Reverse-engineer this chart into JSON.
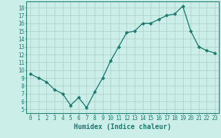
{
  "x": [
    0,
    1,
    2,
    3,
    4,
    5,
    6,
    7,
    8,
    9,
    10,
    11,
    12,
    13,
    14,
    15,
    16,
    17,
    18,
    19,
    20,
    21,
    22,
    23
  ],
  "y": [
    9.5,
    9.0,
    8.5,
    7.5,
    7.0,
    5.5,
    6.5,
    5.2,
    7.2,
    9.0,
    11.2,
    13.0,
    14.8,
    15.0,
    16.0,
    16.0,
    16.5,
    17.0,
    17.2,
    18.2,
    15.0,
    13.0,
    12.5,
    12.2
  ],
  "line_color": "#1a7a6e",
  "marker_color": "#1a7a6e",
  "bg_color": "#cceee8",
  "grid_color": "#aaccc6",
  "xlabel": "Humidex (Indice chaleur)",
  "xlim": [
    -0.5,
    23.5
  ],
  "ylim": [
    4.5,
    18.8
  ],
  "yticks": [
    5,
    6,
    7,
    8,
    9,
    10,
    11,
    12,
    13,
    14,
    15,
    16,
    17,
    18
  ],
  "xticks": [
    0,
    1,
    2,
    3,
    4,
    5,
    6,
    7,
    8,
    9,
    10,
    11,
    12,
    13,
    14,
    15,
    16,
    17,
    18,
    19,
    20,
    21,
    22,
    23
  ],
  "tick_label_fontsize": 5.5,
  "xlabel_fontsize": 7.0,
  "line_width": 1.0,
  "marker_size": 2.5
}
